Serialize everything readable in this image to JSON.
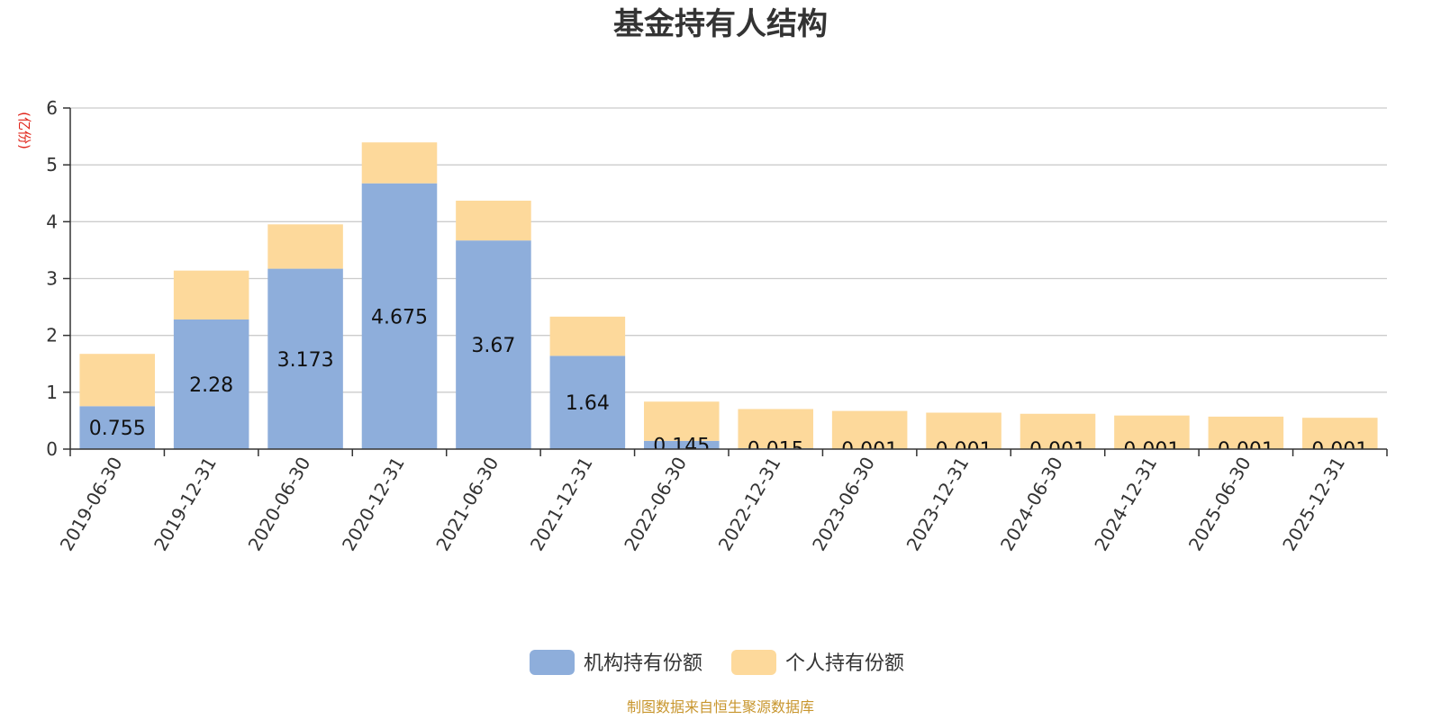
{
  "chart_data": {
    "type": "bar",
    "stacked": true,
    "title": "基金持有人结构",
    "ylabel": "(亿份)",
    "ylim": [
      0,
      6
    ],
    "yticks": [
      0,
      1,
      2,
      3,
      4,
      5,
      6
    ],
    "grid": true,
    "legend_position": "bottom-center",
    "categories": [
      "2019-06-30",
      "2019-12-31",
      "2020-06-30",
      "2020-12-31",
      "2021-06-30",
      "2021-12-31",
      "2022-06-30",
      "2022-12-31",
      "2023-06-30",
      "2023-12-31",
      "2024-06-30",
      "2024-12-31",
      "2025-06-30",
      "2025-12-31"
    ],
    "series": [
      {
        "name": "机构持有份额",
        "color": "#8eaedb",
        "values": [
          0.755,
          2.28,
          3.173,
          4.675,
          3.67,
          1.64,
          0.145,
          0.015,
          0.001,
          0.001,
          0.001,
          0.001,
          0.001,
          0.001
        ],
        "labels": [
          "0.755",
          "2.28",
          "3.173",
          "4.675",
          "3.67",
          "1.64",
          "0.145",
          "0.015",
          "0.001",
          "0.001",
          "0.001",
          "0.001",
          "0.001",
          "0.001"
        ]
      },
      {
        "name": "个人持有份额",
        "color": "#fdd99b",
        "values": [
          0.92,
          0.86,
          0.78,
          0.72,
          0.7,
          0.69,
          0.69,
          0.69,
          0.67,
          0.64,
          0.62,
          0.59,
          0.57,
          0.55
        ]
      }
    ],
    "source": "制图数据来自恒生聚源数据库"
  }
}
